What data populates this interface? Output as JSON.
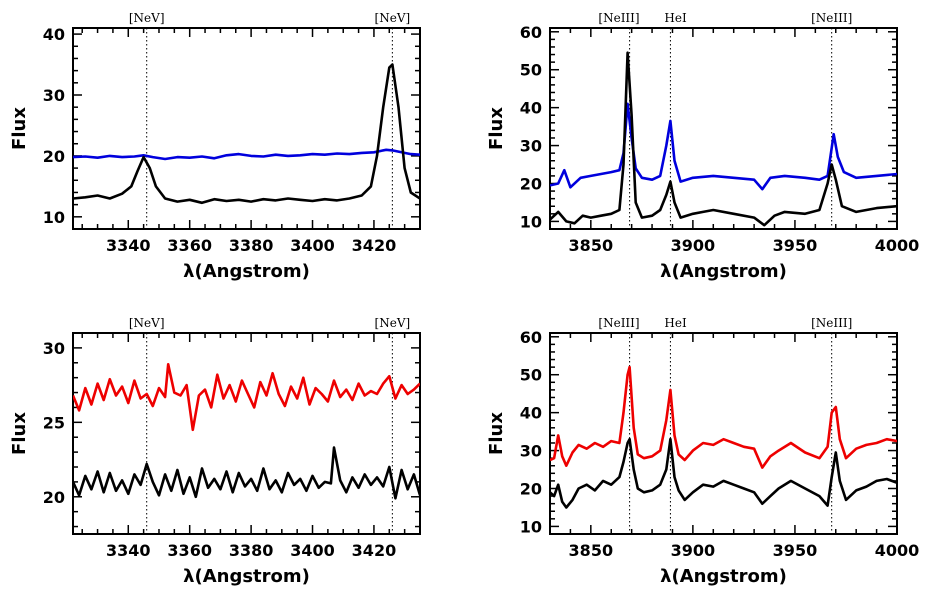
{
  "chart_data": [
    {
      "type": "line",
      "panel": "top-left",
      "xlim": [
        3322,
        3435
      ],
      "ylim": [
        8,
        41
      ],
      "xticks": [
        3340,
        3360,
        3380,
        3400,
        3420
      ],
      "yticks": [
        10,
        20,
        30,
        40
      ],
      "xlabel": "λ(Angstrom)",
      "ylabel": "Flux",
      "grid": false,
      "reference_lines": [
        {
          "x": 3346,
          "label": "[NeV]"
        },
        {
          "x": 3426,
          "label": "[NeV]"
        }
      ],
      "series": [
        {
          "color": "#0000dd",
          "x": [
            3322,
            3326,
            3330,
            3334,
            3338,
            3342,
            3345,
            3348,
            3352,
            3356,
            3360,
            3364,
            3368,
            3372,
            3376,
            3380,
            3384,
            3388,
            3392,
            3396,
            3400,
            3404,
            3408,
            3412,
            3416,
            3420,
            3424,
            3426,
            3428,
            3432,
            3435
          ],
          "y": [
            19.8,
            19.9,
            19.7,
            20.0,
            19.8,
            19.9,
            20.1,
            19.8,
            19.5,
            19.8,
            19.7,
            19.9,
            19.6,
            20.1,
            20.3,
            20.0,
            19.9,
            20.2,
            20.0,
            20.1,
            20.3,
            20.2,
            20.4,
            20.3,
            20.5,
            20.6,
            21.0,
            20.9,
            20.7,
            20.3,
            20.2
          ]
        },
        {
          "color": "#000000",
          "x": [
            3322,
            3326,
            3330,
            3334,
            3338,
            3341,
            3343,
            3345,
            3347,
            3349,
            3352,
            3356,
            3360,
            3364,
            3368,
            3372,
            3376,
            3380,
            3384,
            3388,
            3392,
            3396,
            3400,
            3404,
            3408,
            3412,
            3416,
            3419,
            3421,
            3423,
            3425,
            3426,
            3428,
            3430,
            3432,
            3435
          ],
          "y": [
            13.0,
            13.2,
            13.5,
            13.0,
            13.8,
            15.0,
            17.5,
            19.8,
            18.0,
            15.0,
            13.0,
            12.5,
            12.8,
            12.3,
            12.9,
            12.6,
            12.8,
            12.5,
            12.9,
            12.7,
            13.0,
            12.8,
            12.6,
            12.9,
            12.7,
            13.0,
            13.5,
            15.0,
            20.0,
            28.0,
            34.5,
            35.0,
            28.0,
            18.0,
            14.0,
            13.0
          ]
        }
      ]
    },
    {
      "type": "line",
      "panel": "top-right",
      "xlim": [
        3830,
        4000
      ],
      "ylim": [
        8,
        61
      ],
      "xticks": [
        3850,
        3900,
        3950,
        4000
      ],
      "yticks": [
        10,
        20,
        30,
        40,
        50,
        60
      ],
      "xlabel": "λ(Angstrom)",
      "ylabel": "Flux",
      "grid": false,
      "reference_lines": [
        {
          "x": 3869,
          "label": "[NeIII]"
        },
        {
          "x": 3889,
          "label": "HeI"
        },
        {
          "x": 3968,
          "label": "[NeIII]"
        }
      ],
      "series": [
        {
          "color": "#0000dd",
          "x": [
            3830,
            3834,
            3837,
            3840,
            3845,
            3850,
            3855,
            3860,
            3864,
            3866,
            3868,
            3870,
            3872,
            3875,
            3880,
            3884,
            3887,
            3889,
            3891,
            3894,
            3900,
            3910,
            3920,
            3930,
            3934,
            3938,
            3945,
            3955,
            3962,
            3966,
            3969,
            3971,
            3974,
            3980,
            3990,
            4000
          ],
          "y": [
            19.5,
            20.0,
            23.5,
            19.0,
            21.5,
            22.0,
            22.5,
            23.0,
            23.5,
            28.0,
            41.0,
            32.0,
            24.0,
            21.5,
            21.0,
            22.0,
            30.0,
            36.5,
            26.0,
            20.5,
            21.5,
            22.0,
            21.5,
            21.0,
            18.5,
            21.5,
            22.0,
            21.5,
            21.0,
            22.0,
            33.0,
            27.0,
            23.0,
            21.5,
            22.0,
            22.5
          ]
        },
        {
          "color": "#000000",
          "x": [
            3830,
            3834,
            3838,
            3842,
            3846,
            3850,
            3855,
            3860,
            3864,
            3866,
            3868,
            3870,
            3872,
            3875,
            3880,
            3884,
            3887,
            3889,
            3891,
            3894,
            3900,
            3905,
            3910,
            3920,
            3930,
            3935,
            3940,
            3945,
            3955,
            3962,
            3966,
            3968,
            3970,
            3973,
            3980,
            3990,
            4000
          ],
          "y": [
            10.5,
            12.5,
            10.0,
            9.5,
            11.5,
            11.0,
            11.5,
            12.0,
            13.0,
            25.0,
            54.5,
            38.0,
            15.0,
            11.0,
            11.5,
            13.0,
            17.0,
            20.5,
            15.0,
            11.0,
            12.0,
            12.5,
            13.0,
            12.0,
            11.0,
            9.0,
            11.5,
            12.5,
            12.0,
            13.0,
            20.0,
            25.0,
            21.0,
            14.0,
            12.5,
            13.5,
            14.0
          ]
        }
      ]
    },
    {
      "type": "line",
      "panel": "bottom-left",
      "xlim": [
        3322,
        3435
      ],
      "ylim": [
        17.5,
        31
      ],
      "xticks": [
        3340,
        3360,
        3380,
        3400,
        3420
      ],
      "yticks": [
        20,
        25,
        30
      ],
      "xlabel": "λ(Angstrom)",
      "ylabel": "Flux",
      "grid": false,
      "reference_lines": [
        {
          "x": 3346,
          "label": "[NeV]"
        },
        {
          "x": 3426,
          "label": "[NeV]"
        }
      ],
      "series": [
        {
          "color": "#ee0000",
          "x": [
            3322,
            3324,
            3326,
            3328,
            3330,
            3332,
            3334,
            3336,
            3338,
            3340,
            3342,
            3344,
            3346,
            3348,
            3350,
            3352,
            3353,
            3355,
            3357,
            3359,
            3361,
            3363,
            3365,
            3367,
            3369,
            3371,
            3373,
            3375,
            3377,
            3379,
            3381,
            3383,
            3385,
            3387,
            3389,
            3391,
            3393,
            3395,
            3397,
            3399,
            3401,
            3403,
            3405,
            3407,
            3409,
            3411,
            3413,
            3415,
            3417,
            3419,
            3421,
            3423,
            3425,
            3427,
            3429,
            3431,
            3433,
            3435
          ],
          "y": [
            26.8,
            25.8,
            27.3,
            26.2,
            27.6,
            26.5,
            27.9,
            26.8,
            27.4,
            26.3,
            27.8,
            26.6,
            26.9,
            26.1,
            27.3,
            26.7,
            28.9,
            27.0,
            26.8,
            27.5,
            24.5,
            26.8,
            27.2,
            26.0,
            28.2,
            26.6,
            27.5,
            26.4,
            27.8,
            26.9,
            26.0,
            27.7,
            26.8,
            28.3,
            26.9,
            26.1,
            27.4,
            26.6,
            28.0,
            26.2,
            27.3,
            26.9,
            26.4,
            27.8,
            26.7,
            27.2,
            26.5,
            27.6,
            26.8,
            27.1,
            26.9,
            27.6,
            28.1,
            26.6,
            27.5,
            26.9,
            27.2,
            27.6
          ]
        },
        {
          "color": "#000000",
          "x": [
            3322,
            3324,
            3326,
            3328,
            3330,
            3332,
            3334,
            3336,
            3338,
            3340,
            3342,
            3344,
            3346,
            3348,
            3350,
            3352,
            3354,
            3356,
            3358,
            3360,
            3362,
            3364,
            3366,
            3368,
            3370,
            3372,
            3374,
            3376,
            3378,
            3380,
            3382,
            3384,
            3386,
            3388,
            3390,
            3392,
            3394,
            3396,
            3398,
            3400,
            3402,
            3404,
            3406,
            3407,
            3409,
            3411,
            3413,
            3415,
            3417,
            3419,
            3421,
            3423,
            3425,
            3427,
            3429,
            3431,
            3433,
            3435
          ],
          "y": [
            21.0,
            20.1,
            21.4,
            20.5,
            21.7,
            20.3,
            21.6,
            20.4,
            21.1,
            20.2,
            21.5,
            20.8,
            22.2,
            21.0,
            20.1,
            21.5,
            20.4,
            21.8,
            20.2,
            21.3,
            20.0,
            21.9,
            20.6,
            21.2,
            20.5,
            21.7,
            20.3,
            21.6,
            20.7,
            21.2,
            20.4,
            21.9,
            20.5,
            21.1,
            20.3,
            21.6,
            20.8,
            21.2,
            20.4,
            21.4,
            20.6,
            21.0,
            20.9,
            23.3,
            21.1,
            20.3,
            21.3,
            20.6,
            21.5,
            20.8,
            21.3,
            20.7,
            22.0,
            19.9,
            21.8,
            20.5,
            21.5,
            20.1
          ]
        }
      ]
    },
    {
      "type": "line",
      "panel": "bottom-right",
      "xlim": [
        3830,
        4000
      ],
      "ylim": [
        8,
        61
      ],
      "xticks": [
        3850,
        3900,
        3950,
        4000
      ],
      "yticks": [
        10,
        20,
        30,
        40,
        50,
        60
      ],
      "xlabel": "λ(Angstrom)",
      "ylabel": "Flux",
      "grid": false,
      "reference_lines": [
        {
          "x": 3869,
          "label": "[NeIII]"
        },
        {
          "x": 3889,
          "label": "HeI"
        },
        {
          "x": 3968,
          "label": "[NeIII]"
        }
      ],
      "series": [
        {
          "color": "#ee0000",
          "x": [
            3830,
            3832,
            3834,
            3836,
            3838,
            3841,
            3844,
            3848,
            3852,
            3856,
            3860,
            3864,
            3866,
            3868,
            3869,
            3871,
            3873,
            3876,
            3880,
            3884,
            3887,
            3889,
            3891,
            3893,
            3896,
            3900,
            3905,
            3910,
            3915,
            3920,
            3925,
            3930,
            3934,
            3938,
            3942,
            3948,
            3955,
            3962,
            3966,
            3968,
            3970,
            3972,
            3975,
            3980,
            3985,
            3990,
            3995,
            4000
          ],
          "y": [
            27.5,
            28.0,
            34.0,
            28.5,
            26.0,
            29.5,
            31.5,
            30.5,
            32.0,
            31.0,
            32.5,
            32.0,
            40.0,
            50.0,
            52.0,
            36.0,
            29.0,
            28.0,
            28.5,
            30.0,
            38.0,
            46.0,
            34.0,
            29.0,
            27.5,
            30.0,
            32.0,
            31.5,
            33.0,
            32.0,
            31.0,
            30.5,
            25.5,
            28.5,
            30.0,
            32.0,
            29.5,
            28.0,
            31.0,
            40.0,
            41.5,
            33.0,
            28.0,
            30.5,
            31.5,
            32.0,
            33.0,
            32.5
          ]
        },
        {
          "color": "#000000",
          "x": [
            3830,
            3832,
            3834,
            3836,
            3838,
            3841,
            3844,
            3848,
            3852,
            3856,
            3860,
            3864,
            3866,
            3868,
            3869,
            3871,
            3873,
            3876,
            3880,
            3884,
            3887,
            3889,
            3891,
            3893,
            3896,
            3900,
            3905,
            3910,
            3915,
            3920,
            3925,
            3930,
            3934,
            3938,
            3942,
            3948,
            3955,
            3962,
            3966,
            3968,
            3970,
            3972,
            3975,
            3980,
            3985,
            3990,
            3995,
            4000
          ],
          "y": [
            19.0,
            18.0,
            21.0,
            16.5,
            15.0,
            17.0,
            20.0,
            21.0,
            19.5,
            22.0,
            21.0,
            23.0,
            27.0,
            32.0,
            33.0,
            25.0,
            20.0,
            19.0,
            19.5,
            21.0,
            25.0,
            33.0,
            23.0,
            19.5,
            17.0,
            19.0,
            21.0,
            20.5,
            22.0,
            21.0,
            20.0,
            19.0,
            16.0,
            18.0,
            20.0,
            22.0,
            20.0,
            18.0,
            15.5,
            23.0,
            29.5,
            22.0,
            17.0,
            19.5,
            20.5,
            22.0,
            22.5,
            21.5
          ]
        }
      ]
    }
  ]
}
